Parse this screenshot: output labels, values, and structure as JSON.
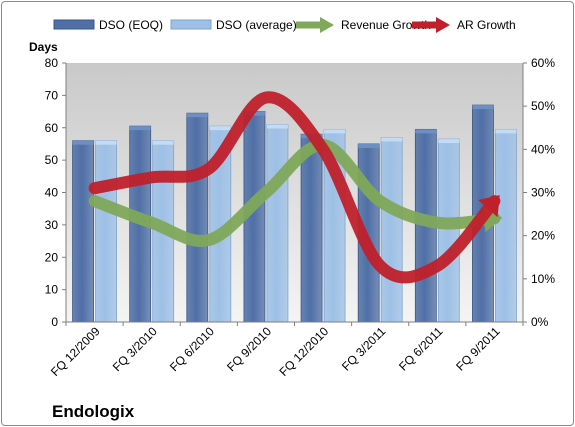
{
  "chart_data": {
    "type": "bar",
    "title": "",
    "company": "Endologix",
    "ylabel": "Days",
    "y2label": "",
    "ylim": [
      0,
      80
    ],
    "y2lim": [
      0,
      60
    ],
    "y_ticks": [
      "0",
      "10",
      "20",
      "30",
      "40",
      "50",
      "60",
      "70",
      "80"
    ],
    "y2_ticks": [
      "0%",
      "10%",
      "20%",
      "30%",
      "40%",
      "50%",
      "60%"
    ],
    "grid": false,
    "legend_position": "top",
    "categories": [
      "FQ 12/2009",
      "FQ 3/2010",
      "FQ 6/2010",
      "FQ 9/2010",
      "FQ 12/2010",
      "FQ 3/2011",
      "FQ 6/2011",
      "FQ 9/2011"
    ],
    "series": [
      {
        "name": "DSO (EOQ)",
        "kind": "bar",
        "axis": "left",
        "color": "#4F6FA6",
        "values": [
          56,
          60.5,
          64.5,
          65,
          58,
          55,
          59.5,
          67
        ]
      },
      {
        "name": "DSO (average)",
        "kind": "bar",
        "axis": "left",
        "color": "#9EC0E6",
        "values": [
          56,
          56,
          60.5,
          61,
          59.5,
          57,
          56.5,
          59.5
        ]
      },
      {
        "name": "Revenue Growth",
        "kind": "arrow-line",
        "axis": "right",
        "color": "#80A85A",
        "values": [
          28,
          23,
          19,
          30,
          41,
          28,
          23,
          24
        ]
      },
      {
        "name": "AR Growth",
        "kind": "arrow-line",
        "axis": "right",
        "color": "#C0202B",
        "values": [
          31,
          33.5,
          35.5,
          52,
          40,
          13,
          13,
          28
        ]
      }
    ]
  }
}
